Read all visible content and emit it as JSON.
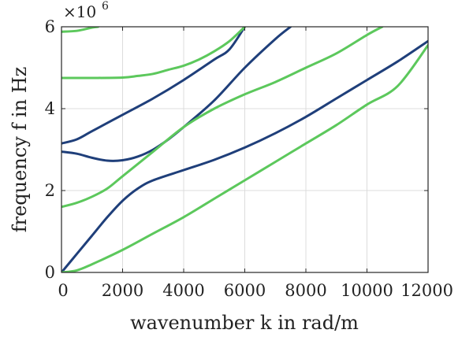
{
  "chart_data": {
    "type": "line",
    "title": "",
    "xlabel": "wavenumber k in rad/m",
    "ylabel": "frequency f in Hz",
    "xlim": [
      0,
      12000
    ],
    "ylim": [
      0,
      6000000
    ],
    "y_multiplier_label": "×10",
    "y_multiplier_exponent": "6",
    "x_ticks": [
      0,
      2000,
      4000,
      6000,
      8000,
      10000,
      12000
    ],
    "x_tick_labels": [
      "0",
      "2000",
      "4000",
      "6000",
      "8000",
      "10000",
      "12000"
    ],
    "y_ticks": [
      0,
      2000000,
      4000000,
      6000000
    ],
    "y_tick_labels": [
      "0",
      "2",
      "4",
      "6"
    ],
    "grid": true,
    "legend": "none",
    "colors": {
      "dark_blue": "#1f3f7a",
      "green": "#5cc85c"
    },
    "series": [
      {
        "color": "#1f3f7a",
        "x": [
          0,
          500,
          1000,
          1500,
          2000,
          2500,
          3000,
          4000,
          5000,
          6000,
          7000,
          8000,
          9000,
          10000,
          11000,
          12000
        ],
        "y": [
          0,
          450000,
          900000,
          1350000,
          1750000,
          2050000,
          2250000,
          2500000,
          2750000,
          3050000,
          3400000,
          3800000,
          4250000,
          4700000,
          5150000,
          5650000
        ]
      },
      {
        "color": "#1f3f7a",
        "x": [
          0,
          500,
          1000,
          1500,
          2000,
          2500,
          3000,
          3500,
          4000,
          5000,
          6000,
          7000,
          7500
        ],
        "y": [
          2950000,
          2900000,
          2800000,
          2730000,
          2740000,
          2830000,
          3000000,
          3250000,
          3550000,
          4200000,
          5000000,
          5700000,
          6000000
        ]
      },
      {
        "color": "#1f3f7a",
        "x": [
          0,
          500,
          1000,
          2000,
          3000,
          4000,
          5000,
          5500,
          6000
        ],
        "y": [
          3150000,
          3250000,
          3450000,
          3850000,
          4250000,
          4700000,
          5200000,
          5450000,
          6000000
        ]
      },
      {
        "color": "#5cc85c",
        "x": [
          0,
          500,
          1000,
          2000,
          3000,
          4000,
          5000,
          6000,
          7000,
          8000,
          9000,
          10000,
          11000,
          12000
        ],
        "y": [
          0,
          50000,
          200000,
          550000,
          950000,
          1350000,
          1800000,
          2250000,
          2700000,
          3150000,
          3600000,
          4100000,
          4550000,
          5550000
        ]
      },
      {
        "color": "#5cc85c",
        "x": [
          0,
          500,
          1000,
          1500,
          2000,
          3000,
          4000,
          5000,
          6000,
          7000,
          8000,
          9000,
          10000,
          10500
        ],
        "y": [
          1600000,
          1700000,
          1850000,
          2050000,
          2350000,
          2950000,
          3550000,
          4000000,
          4350000,
          4650000,
          5000000,
          5350000,
          5800000,
          6000000
        ]
      },
      {
        "color": "#5cc85c",
        "x": [
          0,
          1000,
          2000,
          2500,
          3000,
          3500,
          4000,
          4500,
          5000,
          5500,
          6000
        ],
        "y": [
          4750000,
          4750000,
          4760000,
          4800000,
          4850000,
          4950000,
          5050000,
          5200000,
          5400000,
          5650000,
          6000000
        ]
      },
      {
        "color": "#5cc85c",
        "x": [
          0,
          500,
          1000,
          1200
        ],
        "y": [
          5880000,
          5900000,
          5980000,
          6000000
        ]
      }
    ]
  }
}
